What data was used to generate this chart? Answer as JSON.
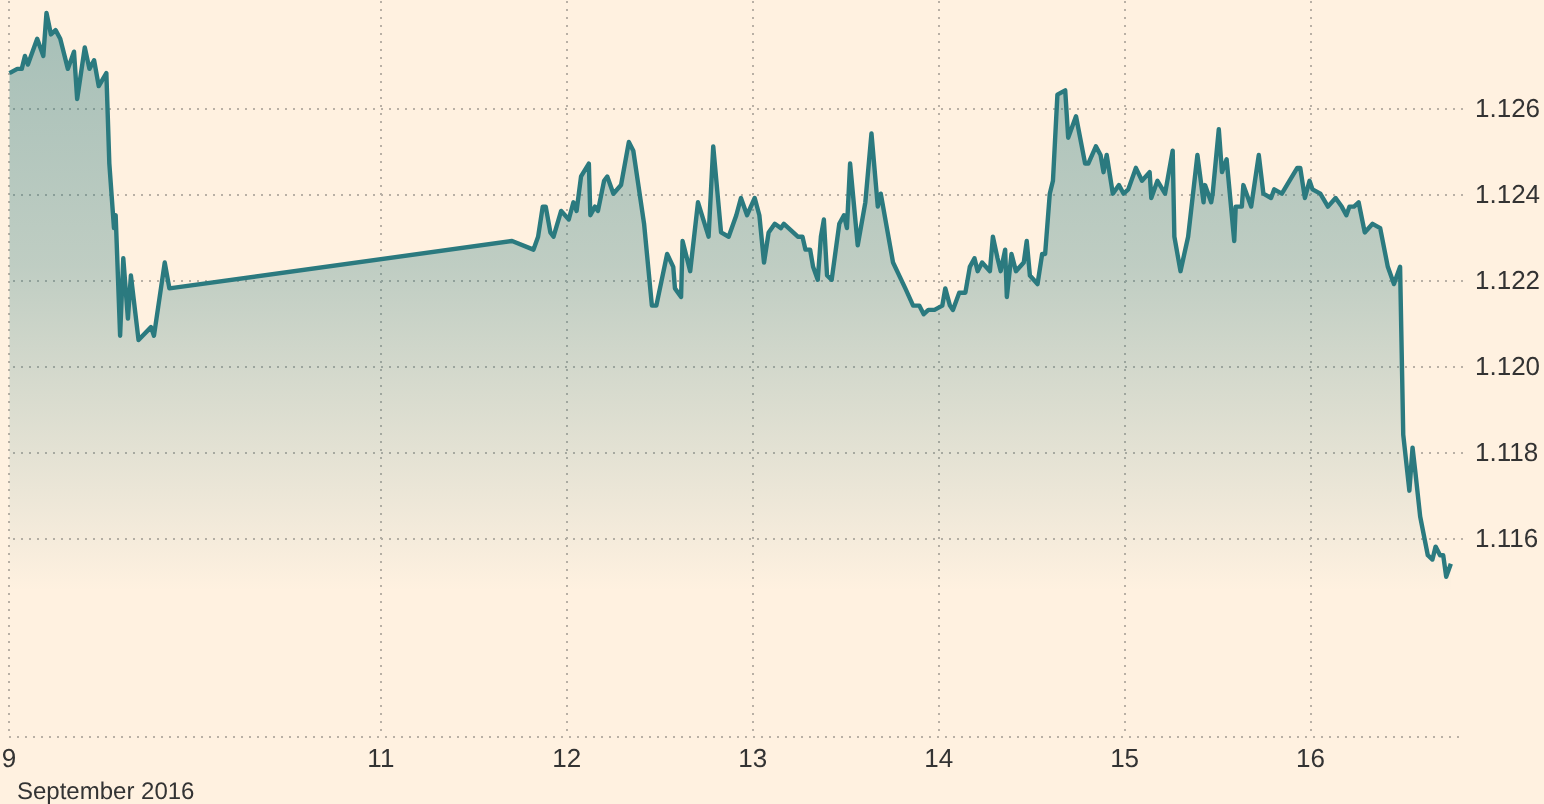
{
  "chart_data": {
    "type": "area",
    "xlabel": "September 2016",
    "xlim": [
      9,
      16.82
    ],
    "ylim": [
      1.1114,
      1.1285
    ],
    "xticks": [
      9,
      11,
      12,
      13,
      14,
      15,
      16
    ],
    "yticks": [
      1.116,
      1.118,
      {
        "value": 1.12,
        "label": "1.120"
      },
      1.122,
      1.124,
      1.126
    ],
    "grid": true,
    "series": [
      {
        "color": "#2b7a7f",
        "x": [
          9.008,
          9.05,
          9.074,
          9.091,
          9.107,
          9.157,
          9.19,
          9.207,
          9.231,
          9.256,
          9.281,
          9.322,
          9.355,
          9.372,
          9.413,
          9.438,
          9.463,
          9.488,
          9.529,
          9.545,
          9.57,
          9.579,
          9.603,
          9.62,
          9.645,
          9.661,
          9.702,
          9.769,
          9.785,
          9.843,
          9.868,
          11.711,
          11.826,
          11.851,
          11.876,
          11.892,
          11.917,
          11.934,
          11.975,
          12.016,
          12.041,
          12.058,
          12.082,
          12.124,
          12.132,
          12.157,
          12.173,
          12.206,
          12.223,
          12.256,
          12.297,
          12.339,
          12.363,
          12.421,
          12.463,
          12.487,
          12.545,
          12.578,
          12.587,
          12.62,
          12.628,
          12.669,
          12.711,
          12.768,
          12.793,
          12.835,
          12.876,
          12.917,
          12.942,
          12.975,
          13.016,
          13.041,
          13.066,
          13.091,
          13.124,
          13.157,
          13.173,
          13.223,
          13.248,
          13.273,
          13.289,
          13.314,
          13.33,
          13.355,
          13.372,
          13.388,
          13.405,
          13.43,
          13.471,
          13.496,
          13.512,
          13.529,
          13.57,
          13.611,
          13.644,
          13.678,
          13.694,
          13.76,
          13.826,
          13.868,
          13.901,
          13.925,
          13.95,
          13.983,
          14.025,
          14.041,
          14.066,
          14.082,
          14.116,
          14.149,
          14.173,
          14.198,
          14.215,
          14.239,
          14.281,
          14.297,
          14.322,
          14.339,
          14.363,
          14.372,
          14.397,
          14.421,
          14.463,
          14.479,
          14.496,
          14.537,
          14.562,
          14.578,
          14.603,
          14.62,
          14.644,
          14.686,
          14.702,
          14.744,
          14.793,
          14.81,
          14.851,
          14.876,
          14.892,
          14.909,
          14.942,
          14.975,
          15.0,
          15.025,
          15.058,
          15.066,
          15.099,
          15.14,
          15.149,
          15.182,
          15.223,
          15.264,
          15.273,
          15.306,
          15.347,
          15.397,
          15.43,
          15.438,
          15.471,
          15.479,
          15.512,
          15.529,
          15.554,
          15.595,
          15.603,
          15.636,
          15.644,
          15.686,
          15.727,
          15.752,
          15.793,
          15.81,
          15.851,
          15.892,
          15.934,
          15.95,
          15.975,
          16.0,
          16.016,
          16.058,
          16.099,
          16.14,
          16.173,
          16.198,
          16.215,
          16.239,
          16.264,
          16.297,
          16.339,
          16.38,
          16.421,
          16.454,
          16.487,
          16.504,
          16.537,
          16.554,
          16.57,
          16.595,
          16.636,
          16.661,
          16.678,
          16.702,
          16.719,
          16.735,
          16.76
        ],
        "values": [
          1.1268,
          1.1269,
          1.1269,
          1.1272,
          1.127,
          1.1276,
          1.1272,
          1.1282,
          1.1277,
          1.1278,
          1.1276,
          1.1269,
          1.1273,
          1.1262,
          1.1274,
          1.1269,
          1.1271,
          1.1265,
          1.1268,
          1.1247,
          1.1232,
          1.1235,
          1.1207,
          1.1225,
          1.1211,
          1.1221,
          1.1206,
          1.1209,
          1.1207,
          1.1224,
          1.1218,
          1.1229,
          1.1227,
          1.123,
          1.1237,
          1.1237,
          1.1231,
          1.123,
          1.1236,
          1.1234,
          1.1238,
          1.1236,
          1.1244,
          1.1247,
          1.1235,
          1.1237,
          1.1236,
          1.1243,
          1.1244,
          1.124,
          1.1242,
          1.1252,
          1.125,
          1.1233,
          1.1214,
          1.1214,
          1.1226,
          1.1223,
          1.1218,
          1.1216,
          1.1229,
          1.1222,
          1.1238,
          1.123,
          1.1251,
          1.1231,
          1.123,
          1.1235,
          1.1239,
          1.1235,
          1.1239,
          1.1235,
          1.1224,
          1.1231,
          1.1233,
          1.1232,
          1.1233,
          1.1231,
          1.123,
          1.123,
          1.1227,
          1.1227,
          1.1223,
          1.122,
          1.123,
          1.1234,
          1.1221,
          1.122,
          1.1233,
          1.1235,
          1.1232,
          1.1247,
          1.1228,
          1.1238,
          1.1254,
          1.1237,
          1.124,
          1.1224,
          1.1218,
          1.1214,
          1.1214,
          1.1212,
          1.1213,
          1.1213,
          1.1214,
          1.1218,
          1.1214,
          1.1213,
          1.1217,
          1.1217,
          1.1223,
          1.1225,
          1.1222,
          1.1224,
          1.1222,
          1.123,
          1.1225,
          1.1222,
          1.1227,
          1.1216,
          1.1226,
          1.1222,
          1.1224,
          1.1229,
          1.1221,
          1.1219,
          1.1226,
          1.1226,
          1.124,
          1.1243,
          1.1263,
          1.1264,
          1.1253,
          1.1258,
          1.1247,
          1.1247,
          1.1251,
          1.1249,
          1.1245,
          1.1249,
          1.124,
          1.1242,
          1.124,
          1.1241,
          1.1245,
          1.1246,
          1.1243,
          1.1245,
          1.1239,
          1.1243,
          1.124,
          1.125,
          1.123,
          1.1222,
          1.123,
          1.1249,
          1.1238,
          1.1242,
          1.1238,
          1.124,
          1.1255,
          1.1245,
          1.1248,
          1.1229,
          1.1237,
          1.1237,
          1.1242,
          1.1237,
          1.1249,
          1.124,
          1.1239,
          1.1241,
          1.124,
          1.1243,
          1.1246,
          1.1246,
          1.1239,
          1.1243,
          1.1241,
          1.124,
          1.1237,
          1.1239,
          1.1237,
          1.1235,
          1.1237,
          1.1237,
          1.1238,
          1.1231,
          1.1233,
          1.1232,
          1.1223,
          1.1219,
          1.1223,
          1.1184,
          1.1171,
          1.1181,
          1.1175,
          1.1165,
          1.1156,
          1.1155,
          1.1158,
          1.1156,
          1.1156,
          1.1151,
          1.1154
        ]
      }
    ]
  }
}
